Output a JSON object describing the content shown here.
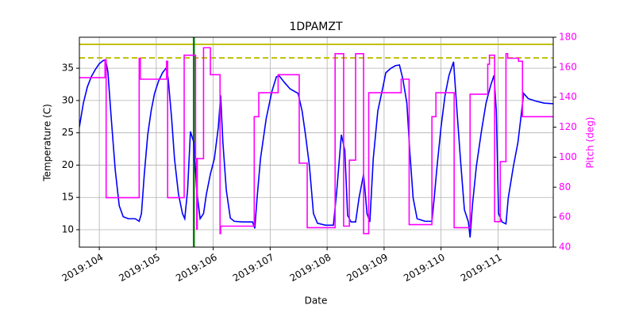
{
  "chart_data": {
    "type": "line",
    "title": "1DPAMZT",
    "x_label": "Date",
    "y_label": "Temperature (C)",
    "y2_label": "Pitch (deg)",
    "xlim": [
      103.65,
      111.97
    ],
    "xticks": [
      {
        "value": 104,
        "label": "2019:104"
      },
      {
        "value": 105,
        "label": "2019:105"
      },
      {
        "value": 106,
        "label": "2019:106"
      },
      {
        "value": 107,
        "label": "2019:107"
      },
      {
        "value": 108,
        "label": "2019:108"
      },
      {
        "value": 109,
        "label": "2019:109"
      },
      {
        "value": 110,
        "label": "2019:110"
      },
      {
        "value": 111,
        "label": "2019:111"
      }
    ],
    "ylim": [
      7.3,
      39.8
    ],
    "yticks": [
      10,
      15,
      20,
      25,
      30,
      35
    ],
    "y2lim": [
      40,
      180
    ],
    "y2ticks": [
      40,
      60,
      80,
      100,
      120,
      140,
      160,
      180
    ],
    "y2_color": "#ff00ff",
    "grid": true,
    "hlines": [
      {
        "value": 38.7,
        "color": "#bfbf00",
        "style": "solid"
      },
      {
        "value": 36.6,
        "color": "#bfbf00",
        "style": "dashed"
      }
    ],
    "vlines": [
      {
        "value": 105.66,
        "color": "#008000",
        "style": "solid"
      }
    ],
    "series": [
      {
        "color": "#0000ff",
        "axis": "y",
        "x": [
          103.65,
          103.72,
          103.79,
          103.86,
          103.93,
          104.0,
          104.07,
          104.11,
          104.15,
          104.21,
          104.28,
          104.35,
          104.42,
          104.51,
          104.63,
          104.7,
          104.74,
          104.79,
          104.85,
          104.91,
          104.97,
          105.04,
          105.11,
          105.18,
          105.21,
          105.27,
          105.32,
          105.39,
          105.46,
          105.5,
          105.55,
          105.6,
          105.66,
          105.71,
          105.77,
          105.83,
          105.88,
          105.95,
          106.02,
          106.09,
          106.13,
          106.17,
          106.23,
          106.3,
          106.37,
          106.51,
          106.69,
          106.73,
          106.77,
          106.83,
          106.93,
          107.03,
          107.11,
          107.16,
          107.25,
          107.35,
          107.49,
          107.56,
          107.62,
          107.69,
          107.76,
          107.83,
          107.97,
          108.11,
          108.17,
          108.25,
          108.31,
          108.36,
          108.42,
          108.5,
          108.56,
          108.64,
          108.7,
          108.75,
          108.81,
          108.89,
          108.98,
          109.03,
          109.12,
          109.2,
          109.27,
          109.33,
          109.4,
          109.45,
          109.51,
          109.58,
          109.72,
          109.84,
          109.88,
          109.93,
          110.0,
          110.07,
          110.14,
          110.22,
          110.27,
          110.34,
          110.41,
          110.48,
          110.51,
          110.55,
          110.62,
          110.71,
          110.79,
          110.87,
          110.93,
          110.97,
          111.01,
          111.07,
          111.14,
          111.18,
          111.27,
          111.35,
          111.4,
          111.45,
          111.53,
          111.67,
          111.81,
          111.97
        ],
        "values": [
          25.9,
          29.6,
          32.1,
          33.7,
          34.8,
          35.7,
          36.2,
          36.3,
          34.5,
          27.2,
          19.2,
          13.7,
          12.0,
          11.7,
          11.7,
          11.3,
          12.5,
          18.6,
          24.7,
          28.4,
          31.1,
          33.0,
          34.3,
          35.1,
          33.3,
          27.2,
          21.0,
          15.5,
          12.5,
          11.7,
          16.1,
          25.2,
          23.5,
          16.1,
          11.7,
          12.5,
          15.5,
          18.6,
          21.0,
          25.9,
          30.8,
          23.5,
          16.1,
          11.8,
          11.3,
          11.2,
          11.2,
          10.2,
          14.9,
          21.0,
          27.2,
          31.4,
          33.7,
          33.8,
          32.8,
          31.8,
          31.1,
          28.4,
          24.7,
          19.8,
          12.5,
          11.0,
          10.7,
          10.7,
          16.1,
          24.7,
          22.3,
          12.2,
          11.2,
          11.2,
          14.9,
          18.6,
          12.5,
          11.2,
          21.0,
          28.4,
          32.1,
          34.3,
          35.0,
          35.4,
          35.5,
          33.3,
          29.6,
          22.3,
          14.9,
          11.7,
          11.3,
          11.3,
          14.9,
          19.8,
          25.9,
          30.8,
          33.9,
          36.0,
          29.6,
          21.0,
          13.1,
          11.2,
          8.8,
          13.7,
          19.8,
          25.3,
          29.6,
          32.3,
          33.9,
          28.4,
          12.5,
          11.2,
          10.9,
          14.9,
          19.8,
          23.5,
          27.2,
          31.1,
          30.3,
          29.9,
          29.6,
          29.5
        ]
      },
      {
        "color": "#ff00ff",
        "axis": "y2",
        "x": [
          103.65,
          104.1,
          104.1,
          104.12,
          104.12,
          104.7,
          104.7,
          104.72,
          104.72,
          105.18,
          105.18,
          105.2,
          105.2,
          105.49,
          105.49,
          105.69,
          105.69,
          105.71,
          105.71,
          105.72,
          105.72,
          105.83,
          105.83,
          105.95,
          105.95,
          106.12,
          106.12,
          106.13,
          106.13,
          106.72,
          106.72,
          106.8,
          106.8,
          107.14,
          107.14,
          107.51,
          107.51,
          107.65,
          107.65,
          108.14,
          108.14,
          108.29,
          108.29,
          108.39,
          108.39,
          108.5,
          108.5,
          108.64,
          108.64,
          108.73,
          108.73,
          109.3,
          109.3,
          109.44,
          109.44,
          109.84,
          109.84,
          109.91,
          109.91,
          110.23,
          110.23,
          110.51,
          110.51,
          110.82,
          110.82,
          110.85,
          110.85,
          110.94,
          110.94,
          111.04,
          111.04,
          111.14,
          111.14,
          111.17,
          111.17,
          111.36,
          111.36,
          111.43,
          111.43,
          111.97
        ],
        "values": [
          153,
          153,
          165,
          165,
          73,
          73,
          166,
          166,
          152,
          152,
          164,
          164,
          73,
          73,
          168,
          168,
          99,
          99,
          52,
          52,
          99,
          99,
          173,
          173,
          155,
          155,
          49,
          49,
          54,
          54,
          127,
          127,
          143,
          143,
          155,
          155,
          96,
          96,
          53,
          53,
          169,
          169,
          54,
          54,
          98,
          98,
          169,
          169,
          49,
          49,
          143,
          143,
          152,
          152,
          55,
          55,
          127,
          127,
          143,
          143,
          53,
          53,
          142,
          142,
          162,
          162,
          168,
          168,
          57,
          57,
          97,
          97,
          169,
          169,
          166,
          166,
          164,
          164,
          127,
          127
        ]
      }
    ]
  }
}
